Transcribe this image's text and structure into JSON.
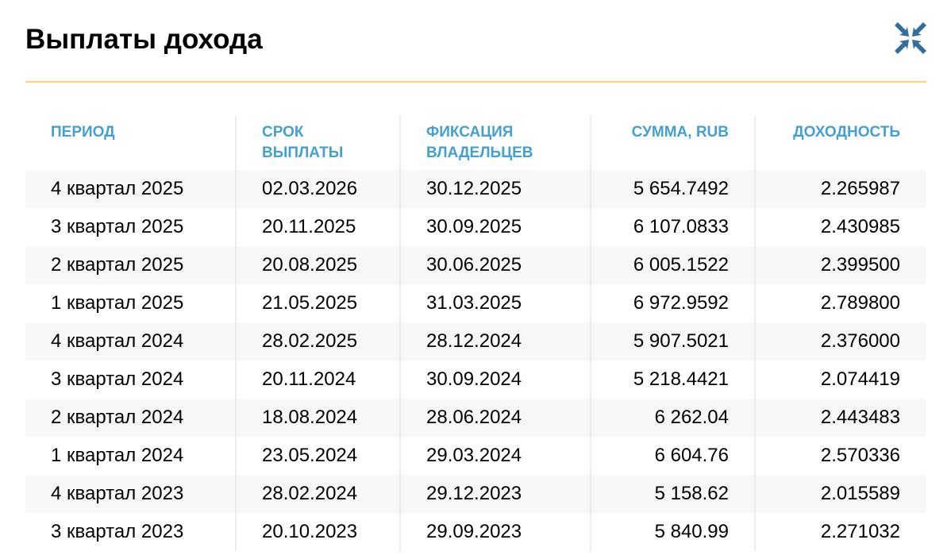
{
  "title": "Выплаты дохода",
  "collapse_icon": "collapse-arrows-icon",
  "colors": {
    "accent": "#459fcf",
    "rule": "#fbd46a",
    "icon": "#336e9c"
  },
  "columns": [
    "ПЕРИОД",
    "СРОК ВЫПЛАТЫ",
    "ФИКСАЦИЯ ВЛАДЕЛЬЦЕВ",
    "СУММА, RUB",
    "ДОХОДНОСТЬ"
  ],
  "rows": [
    [
      "4 квартал 2025",
      "02.03.2026",
      "30.12.2025",
      "5 654.7492",
      "2.265987"
    ],
    [
      "3 квартал 2025",
      "20.11.2025",
      "30.09.2025",
      "6 107.0833",
      "2.430985"
    ],
    [
      "2 квартал 2025",
      "20.08.2025",
      "30.06.2025",
      "6 005.1522",
      "2.399500"
    ],
    [
      "1 квартал 2025",
      "21.05.2025",
      "31.03.2025",
      "6 972.9592",
      "2.789800"
    ],
    [
      "4 квартал 2024",
      "28.02.2025",
      "28.12.2024",
      "5 907.5021",
      "2.376000"
    ],
    [
      "3 квартал 2024",
      "20.11.2024",
      "30.09.2024",
      "5 218.4421",
      "2.074419"
    ],
    [
      "2 квартал 2024",
      "18.08.2024",
      "28.06.2024",
      "6 262.04",
      "2.443483"
    ],
    [
      "1 квартал 2024",
      "23.05.2024",
      "29.03.2024",
      "6 604.76",
      "2.570336"
    ],
    [
      "4 квартал 2023",
      "28.02.2024",
      "29.12.2023",
      "5 158.62",
      "2.015589"
    ],
    [
      "3 квартал 2023",
      "20.10.2023",
      "29.09.2023",
      "5 840.99",
      "2.271032"
    ]
  ]
}
